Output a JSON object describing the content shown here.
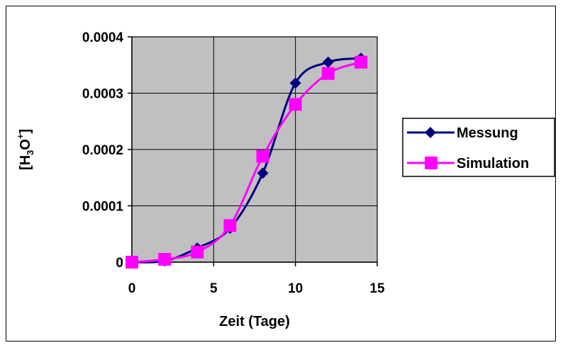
{
  "chart_data": {
    "type": "line",
    "xlabel": "Zeit (Tage)",
    "ylabel": {
      "prefix": "[H",
      "sub": "3",
      "mid": "O",
      "sup": "+",
      "suffix": "]"
    },
    "xlim": [
      0,
      15
    ],
    "ylim": [
      0,
      0.0004
    ],
    "xticks": [
      0,
      5,
      10,
      15
    ],
    "xtick_labels": [
      "0",
      "5",
      "10",
      "15"
    ],
    "yticks": [
      0,
      0.0001,
      0.0002,
      0.0003,
      0.0004
    ],
    "ytick_labels": [
      "0",
      "0.0001",
      "0.0002",
      "0.0003",
      "0.0004"
    ],
    "grid": true,
    "plot_background": "#c0c0c0",
    "legend_position": "right",
    "series": [
      {
        "name": "Messung",
        "color": "#000080",
        "marker": "diamond",
        "x": [
          0,
          2,
          4,
          6,
          8,
          10,
          12,
          14
        ],
        "y": [
          0.0,
          2e-06,
          2.5e-05,
          6e-05,
          0.000158,
          0.000318,
          0.000355,
          0.000362
        ]
      },
      {
        "name": "Simulation",
        "color": "#ff00ff",
        "marker": "square",
        "x": [
          0,
          2,
          4,
          6,
          8,
          10,
          12,
          14
        ],
        "y": [
          0.0,
          5e-06,
          1.8e-05,
          6.5e-05,
          0.000188,
          0.00028,
          0.000335,
          0.000355
        ]
      }
    ]
  }
}
